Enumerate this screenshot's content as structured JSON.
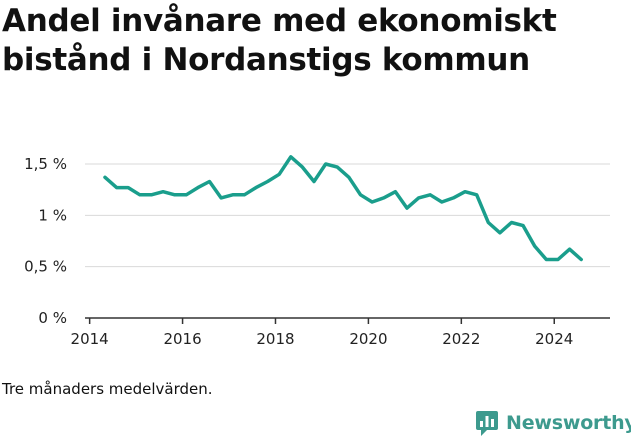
{
  "title": "Andel invånare med ekonomiskt bistånd i Nordanstigs kommun",
  "caption": "Tre månaders medelvärden.",
  "brand": "Newsworthy",
  "colors": {
    "line": "#1a9e8c",
    "grid": "#d9d9d9",
    "axis": "#333333",
    "brand": "#3d9a8e"
  },
  "chart_data": {
    "type": "line",
    "title": "Andel invånare med ekonomiskt bistånd i Nordanstigs kommun",
    "xlabel": "",
    "ylabel": "",
    "xlim": [
      2013.9,
      2025.2
    ],
    "ylim": [
      0,
      1.5
    ],
    "x_ticks": [
      {
        "value": 2014,
        "label": "2014"
      },
      {
        "value": 2016,
        "label": "2016"
      },
      {
        "value": 2018,
        "label": "2018"
      },
      {
        "value": 2020,
        "label": "2020"
      },
      {
        "value": 2022,
        "label": "2022"
      },
      {
        "value": 2024,
        "label": "2024"
      }
    ],
    "y_ticks": [
      {
        "value": 0,
        "label": "0 %"
      },
      {
        "value": 0.5,
        "label": "0,5 %"
      },
      {
        "value": 1,
        "label": "1 %"
      },
      {
        "value": 1.5,
        "label": "1,5 %"
      }
    ],
    "grid": true,
    "series": [
      {
        "x": [
          2014.33,
          2014.58,
          2014.83,
          2015.08,
          2015.33,
          2015.58,
          2015.83,
          2016.08,
          2016.33,
          2016.58,
          2016.83,
          2017.08,
          2017.33,
          2017.58,
          2017.83,
          2018.08,
          2018.33,
          2018.58,
          2018.83,
          2019.08,
          2019.33,
          2019.58,
          2019.83,
          2020.08,
          2020.33,
          2020.58,
          2020.83,
          2021.08,
          2021.33,
          2021.58,
          2021.83,
          2022.08,
          2022.33,
          2022.58,
          2022.83,
          2023.08,
          2023.33,
          2023.58,
          2023.83,
          2024.08,
          2024.33,
          2024.58
        ],
        "values": [
          1.37,
          1.27,
          1.27,
          1.2,
          1.2,
          1.23,
          1.2,
          1.2,
          1.27,
          1.33,
          1.17,
          1.2,
          1.2,
          1.27,
          1.33,
          1.4,
          1.57,
          1.47,
          1.33,
          1.5,
          1.47,
          1.37,
          1.2,
          1.13,
          1.17,
          1.23,
          1.07,
          1.17,
          1.2,
          1.13,
          1.17,
          1.23,
          1.2,
          0.93,
          0.83,
          0.93,
          0.9,
          0.7,
          0.57,
          0.57,
          0.67,
          0.57
        ]
      }
    ]
  }
}
